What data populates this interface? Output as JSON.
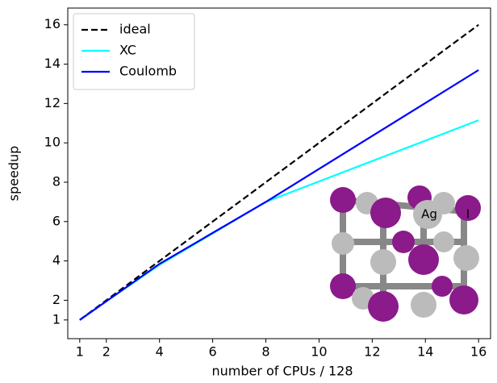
{
  "chart_data": {
    "type": "line",
    "xlabel": "number of CPUs / 128",
    "ylabel": "speedup",
    "x": [
      1,
      2,
      4,
      8,
      16
    ],
    "series": [
      {
        "name": "ideal",
        "color": "#000000",
        "linestyle": "dashed",
        "values": [
          1,
          2,
          4,
          8,
          16
        ]
      },
      {
        "name": "XC",
        "color": "#00ffff",
        "linestyle": "solid",
        "values": [
          1,
          1.95,
          3.8,
          7.0,
          11.15
        ]
      },
      {
        "name": "Coulomb",
        "color": "#0000ff",
        "linestyle": "solid",
        "values": [
          1,
          1.95,
          3.85,
          7.0,
          13.7
        ]
      }
    ],
    "xlim": [
      0.55,
      16.45
    ],
    "ylim": [
      0.05,
      16.85
    ],
    "xticks": [
      1,
      2,
      4,
      6,
      8,
      10,
      12,
      14,
      16
    ],
    "yticks": [
      1,
      2,
      4,
      6,
      8,
      10,
      12,
      14,
      16
    ],
    "legend": "upper left",
    "annotations": [
      "Ag",
      "I"
    ]
  }
}
